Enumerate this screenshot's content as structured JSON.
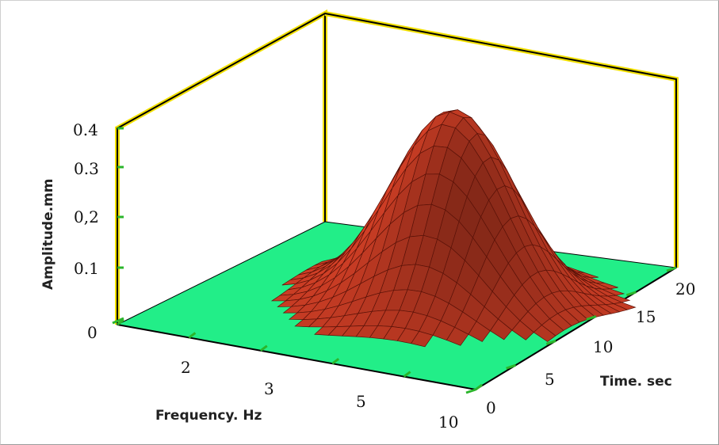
{
  "chart_data": {
    "type": "surface",
    "title": "",
    "zlabel": "Amplitude.mm",
    "xlabel": "Frequency. Hz",
    "ylabel": "Time. sec",
    "z_ticks": [
      "0",
      "0.1",
      "0,2",
      "0.3",
      "0.4"
    ],
    "x_ticks": [
      "2",
      "3",
      "5",
      "10"
    ],
    "y_ticks": [
      "0",
      "5",
      "10",
      "15",
      "20"
    ],
    "zlim": [
      0,
      0.4
    ],
    "peak_amplitude": 0.4,
    "surface": {
      "description_shape": "single gaussian-like peak",
      "peak_frequency_hz": 3,
      "peak_time_sec": 10,
      "grid_rows": 26,
      "grid_cols": 26
    },
    "colors": {
      "surface": "#e8462a",
      "floor": "#22ee88",
      "frame_highlight": "#f2e000",
      "tick_marks": "#2bb52b"
    }
  }
}
